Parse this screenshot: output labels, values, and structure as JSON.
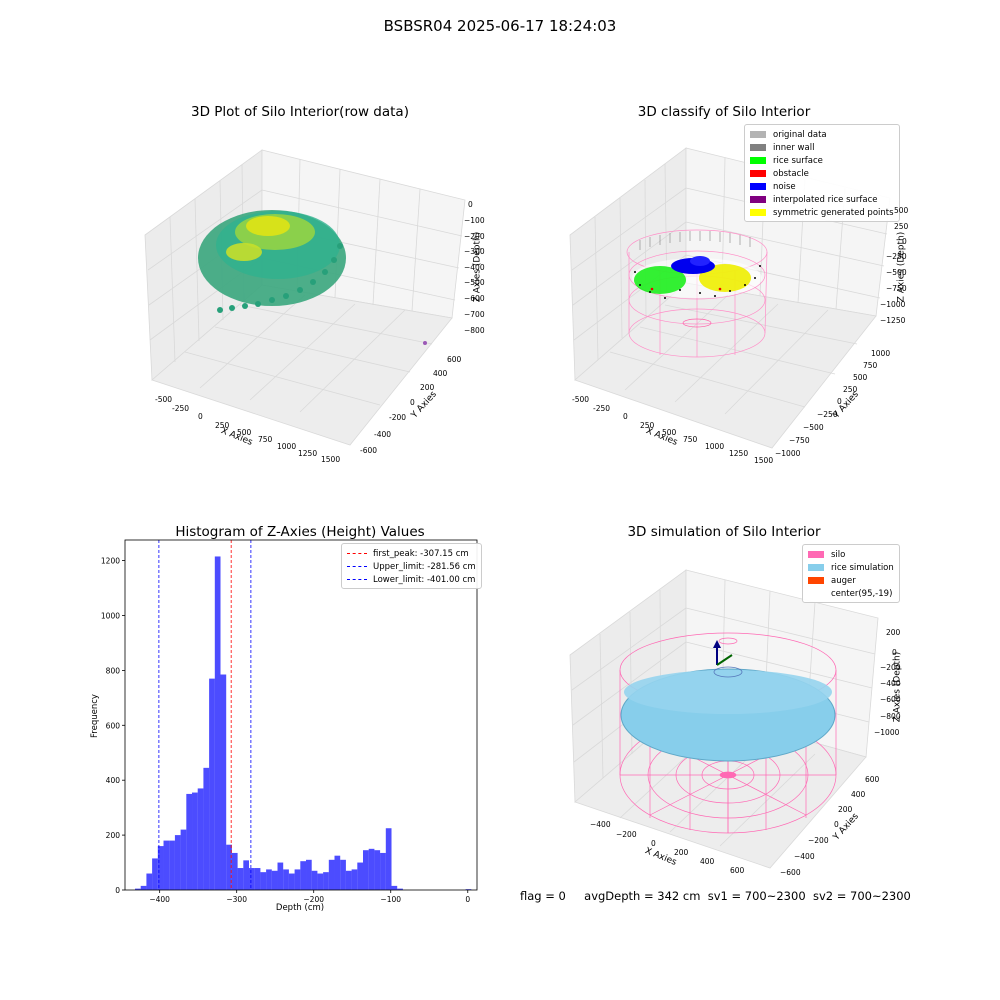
{
  "figure": {
    "suptitle": "BSBSR04 2025-06-17 18:24:03"
  },
  "panels": {
    "raw": {
      "title": "3D Plot of Silo Interior(row data)",
      "xlabel": "X Axies",
      "ylabel": "Y Axies",
      "zlabel": "Z Axies (Depth)",
      "xticks": [
        "-500",
        "-250",
        "0",
        "250",
        "500",
        "750",
        "1000",
        "1250",
        "1500"
      ],
      "yticks": [
        "-600",
        "-400",
        "-200",
        "0",
        "200",
        "400",
        "600"
      ],
      "zticks": [
        "0",
        "−100",
        "−200",
        "−300",
        "−400",
        "−500",
        "−600",
        "−700",
        "−800"
      ]
    },
    "classify": {
      "title": "3D classify of Silo Interior",
      "xlabel": "X Axies",
      "ylabel": "Y Axies",
      "zlabel": "Z Axies (Depth)",
      "xticks": [
        "-500",
        "-250",
        "0",
        "250",
        "500",
        "750",
        "1000",
        "1250",
        "1500"
      ],
      "yticks": [
        "−1000",
        "−750",
        "−500",
        "−250",
        "0",
        "250",
        "500",
        "750",
        "1000"
      ],
      "zticks": [
        "500",
        "250",
        "0",
        "−250",
        "−500",
        "−750",
        "−1000",
        "−1250"
      ],
      "legend": [
        {
          "label": "original data",
          "color": "#b3b3b3"
        },
        {
          "label": "inner wall",
          "color": "#808080"
        },
        {
          "label": "rice surface",
          "color": "#00ff00"
        },
        {
          "label": "obstacle",
          "color": "#ff0000"
        },
        {
          "label": "noise",
          "color": "#0000ff"
        },
        {
          "label": "interpolated rice surface",
          "color": "#800080"
        },
        {
          "label": "symmetric generated points",
          "color": "#ffff00"
        }
      ]
    },
    "simulation": {
      "title": "3D simulation of Silo Interior",
      "xlabel": "X Axies",
      "ylabel": "Y Axies",
      "zlabel": "Z Axies (Depth)",
      "xticks": [
        "−400",
        "−200",
        "0",
        "200",
        "400",
        "600"
      ],
      "yticks": [
        "−600",
        "−400",
        "−200",
        "0",
        "200",
        "400",
        "600"
      ],
      "zticks": [
        "200",
        "0",
        "−200",
        "−400",
        "−600",
        "−800",
        "−1000"
      ],
      "legend": [
        {
          "label": "silo",
          "color": "#ff69b4"
        },
        {
          "label": "rice simulation",
          "color": "#87ceeb"
        },
        {
          "label": "auger",
          "color": "#ff4500"
        },
        {
          "label": "center(95,-19)",
          "color": "#ffffff"
        }
      ]
    }
  },
  "status": {
    "flag": "flag = 0",
    "avg_depth": "avgDepth = 342 cm",
    "sv1": "sv1 = 700~2300",
    "sv2": "sv2 = 700~2300"
  },
  "chart_data": {
    "type": "bar",
    "title": "Histogram of Z-Axies (Height) Values",
    "xlabel": "Depth (cm)",
    "ylabel": "Frequency",
    "xlim": [
      -445,
      12
    ],
    "ylim": [
      0,
      1275
    ],
    "xticks": [
      -400,
      -300,
      -200,
      -100,
      0
    ],
    "yticks": [
      0,
      200,
      400,
      600,
      800,
      1000,
      1200
    ],
    "bar_color": "#0000ff",
    "bin_width": 7.4,
    "bins_start": [
      -432,
      -424.6,
      -417.2,
      -409.8,
      -402.4,
      -395,
      -387.6,
      -380.2,
      -372.8,
      -365.4,
      -358,
      -350.6,
      -343.2,
      -335.8,
      -328.4,
      -321,
      -313.6,
      -306.2,
      -298.8,
      -291.4,
      -284,
      -276.6,
      -269.2,
      -261.8,
      -254.4,
      -247,
      -239.6,
      -232.2,
      -224.8,
      -217.4,
      -210,
      -202.6,
      -195.2,
      -187.8,
      -180.4,
      -173,
      -165.6,
      -158.2,
      -150.8,
      -143.4,
      -136,
      -128.6,
      -121.2,
      -113.8,
      -106.4,
      -99,
      -91.6,
      -84.2,
      -76.8,
      -69.4,
      -62,
      -54.6,
      -47.2,
      -39.8,
      -32.4,
      -25,
      -17.6,
      -10.2,
      -2.8
    ],
    "values": [
      5,
      15,
      60,
      115,
      160,
      180,
      180,
      200,
      220,
      350,
      355,
      370,
      445,
      770,
      1215,
      785,
      165,
      135,
      80,
      108,
      80,
      80,
      65,
      75,
      70,
      100,
      75,
      60,
      75,
      105,
      110,
      70,
      60,
      65,
      110,
      125,
      110,
      70,
      75,
      100,
      145,
      150,
      145,
      135,
      225,
      15,
      5,
      0,
      0,
      0,
      0,
      0,
      0,
      0,
      0,
      0,
      0,
      0,
      3
    ],
    "reference_lines": [
      {
        "label": "first_peak: -307.15 cm",
        "value": -307.15,
        "color": "#ff0000"
      },
      {
        "label": "Upper_limit: -281.56 cm",
        "value": -281.56,
        "color": "#0000ff"
      },
      {
        "label": "Lower_limit: -401.00 cm",
        "value": -401.0,
        "color": "#0000ff"
      }
    ],
    "legend_position": "top-right",
    "grid": false
  }
}
